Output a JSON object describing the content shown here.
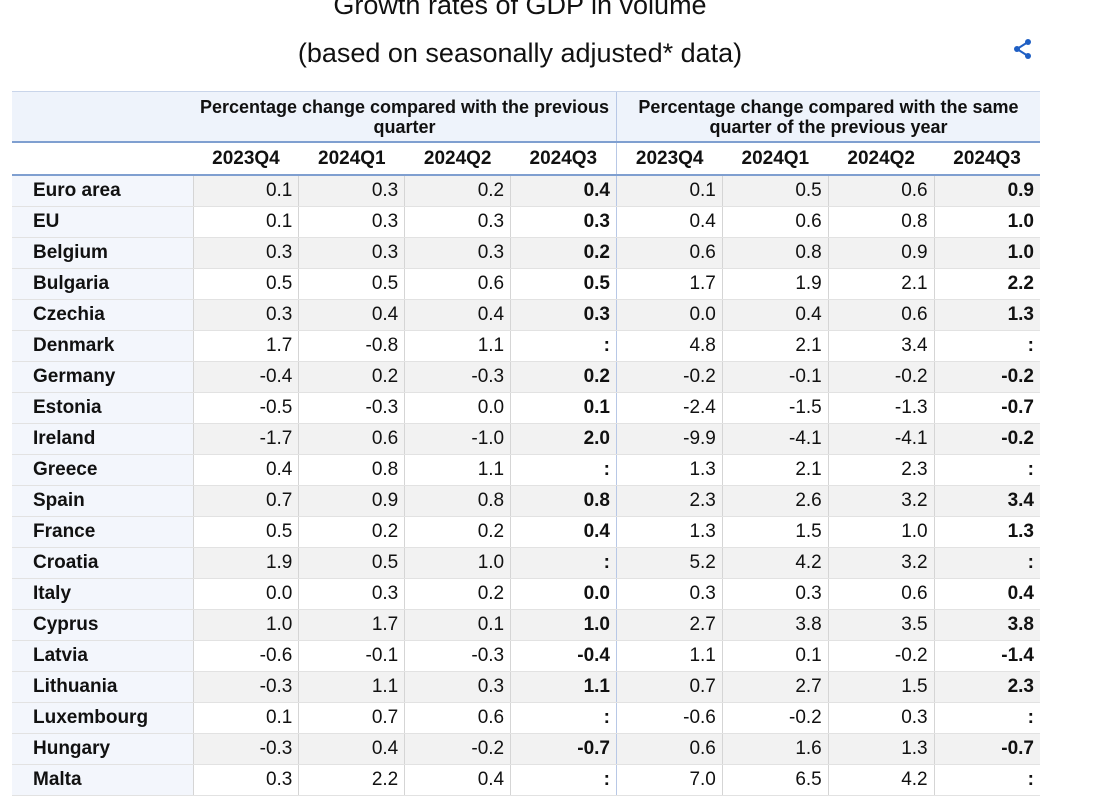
{
  "header": {
    "title": "Growth rates of GDP in volume",
    "subtitle": "(based on seasonally adjusted* data)"
  },
  "table": {
    "groups": [
      "Percentage change compared with the previous quarter",
      "Percentage change compared with the same quarter of the previous year"
    ],
    "columns": [
      "2023Q4",
      "2024Q1",
      "2024Q2",
      "2024Q3",
      "2023Q4",
      "2024Q1",
      "2024Q2",
      "2024Q3"
    ],
    "rows": [
      {
        "label": "Euro area",
        "values": [
          "0.1",
          "0.3",
          "0.2",
          "0.4",
          "0.1",
          "0.5",
          "0.6",
          "0.9"
        ]
      },
      {
        "label": "EU",
        "values": [
          "0.1",
          "0.3",
          "0.3",
          "0.3",
          "0.4",
          "0.6",
          "0.8",
          "1.0"
        ]
      },
      {
        "label": "Belgium",
        "values": [
          "0.3",
          "0.3",
          "0.3",
          "0.2",
          "0.6",
          "0.8",
          "0.9",
          "1.0"
        ]
      },
      {
        "label": "Bulgaria",
        "values": [
          "0.5",
          "0.5",
          "0.6",
          "0.5",
          "1.7",
          "1.9",
          "2.1",
          "2.2"
        ]
      },
      {
        "label": "Czechia",
        "values": [
          "0.3",
          "0.4",
          "0.4",
          "0.3",
          "0.0",
          "0.4",
          "0.6",
          "1.3"
        ]
      },
      {
        "label": "Denmark",
        "values": [
          "1.7",
          "-0.8",
          "1.1",
          ":",
          "4.8",
          "2.1",
          "3.4",
          ":"
        ]
      },
      {
        "label": "Germany",
        "values": [
          "-0.4",
          "0.2",
          "-0.3",
          "0.2",
          "-0.2",
          "-0.1",
          "-0.2",
          "-0.2"
        ]
      },
      {
        "label": "Estonia",
        "values": [
          "-0.5",
          "-0.3",
          "0.0",
          "0.1",
          "-2.4",
          "-1.5",
          "-1.3",
          "-0.7"
        ]
      },
      {
        "label": "Ireland",
        "values": [
          "-1.7",
          "0.6",
          "-1.0",
          "2.0",
          "-9.9",
          "-4.1",
          "-4.1",
          "-0.2"
        ]
      },
      {
        "label": "Greece",
        "values": [
          "0.4",
          "0.8",
          "1.1",
          ":",
          "1.3",
          "2.1",
          "2.3",
          ":"
        ]
      },
      {
        "label": "Spain",
        "values": [
          "0.7",
          "0.9",
          "0.8",
          "0.8",
          "2.3",
          "2.6",
          "3.2",
          "3.4"
        ]
      },
      {
        "label": "France",
        "values": [
          "0.5",
          "0.2",
          "0.2",
          "0.4",
          "1.3",
          "1.5",
          "1.0",
          "1.3"
        ]
      },
      {
        "label": "Croatia",
        "values": [
          "1.9",
          "0.5",
          "1.0",
          ":",
          "5.2",
          "4.2",
          "3.2",
          ":"
        ]
      },
      {
        "label": "Italy",
        "values": [
          "0.0",
          "0.3",
          "0.2",
          "0.0",
          "0.3",
          "0.3",
          "0.6",
          "0.4"
        ]
      },
      {
        "label": "Cyprus",
        "values": [
          "1.0",
          "1.7",
          "0.1",
          "1.0",
          "2.7",
          "3.8",
          "3.5",
          "3.8"
        ]
      },
      {
        "label": "Latvia",
        "values": [
          "-0.6",
          "-0.1",
          "-0.3",
          "-0.4",
          "1.1",
          "0.1",
          "-0.2",
          "-1.4"
        ]
      },
      {
        "label": "Lithuania",
        "values": [
          "-0.3",
          "1.1",
          "0.3",
          "1.1",
          "0.7",
          "2.7",
          "1.5",
          "2.3"
        ]
      },
      {
        "label": "Luxembourg",
        "values": [
          "0.1",
          "0.7",
          "0.6",
          ":",
          "-0.6",
          "-0.2",
          "0.3",
          ":"
        ]
      },
      {
        "label": "Hungary",
        "values": [
          "-0.3",
          "0.4",
          "-0.2",
          "-0.7",
          "0.6",
          "1.6",
          "1.3",
          "-0.7"
        ]
      },
      {
        "label": "Malta",
        "values": [
          "0.3",
          "2.2",
          "0.4",
          ":",
          "7.0",
          "6.5",
          "4.2",
          ":"
        ]
      }
    ]
  }
}
